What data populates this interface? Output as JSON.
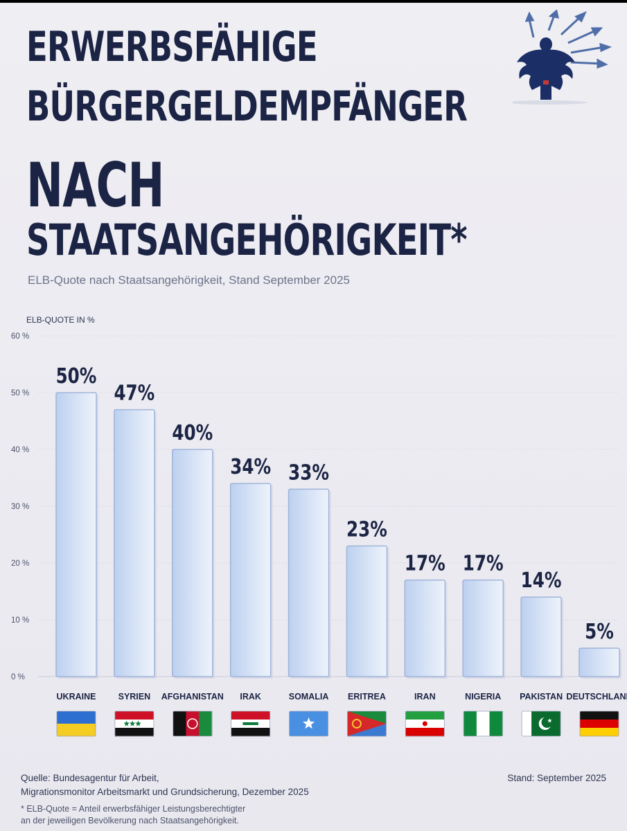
{
  "header": {
    "title_line1": "ERWERBSFÄHIGE",
    "title_line2": "BÜRGERGELDEMPFÄNGER",
    "title_line3": "NACH",
    "title_line4": "STAATSANGEHÖRIGKEIT*",
    "subtitle": "ELB-Quote nach Staatsangehörigkeit, Stand September 2025"
  },
  "logo": {
    "icon": "federal-eagle-icon",
    "color": "#1b2f66",
    "arrow_color": "#4f6ea8"
  },
  "chart_data": {
    "type": "bar",
    "ylabel": "ELB-QUOTE IN %",
    "ylim": [
      0,
      60
    ],
    "yticks": [
      0,
      10,
      20,
      30,
      40,
      50,
      60
    ],
    "ytick_labels": [
      "0 %",
      "10 %",
      "20 %",
      "30 %",
      "40 %",
      "50 %",
      "60 %"
    ],
    "categories": [
      "UKRAINE",
      "SYRIEN",
      "AFGHANISTAN",
      "IRAK",
      "SOMALIA",
      "ERITREA",
      "IRAN",
      "NIGERIA",
      "PAKISTAN",
      "DEUTSCHLAND"
    ],
    "values": [
      50,
      47,
      40,
      34,
      33,
      23,
      17,
      17,
      14,
      5
    ],
    "value_labels": [
      "50%",
      "47%",
      "40%",
      "34%",
      "33%",
      "23%",
      "17%",
      "17%",
      "14%",
      "5%"
    ],
    "flags": [
      "ukraine-flag-icon",
      "syria-flag-icon",
      "afghanistan-flag-icon",
      "iraq-flag-icon",
      "somalia-flag-icon",
      "eritrea-flag-icon",
      "iran-flag-icon",
      "nigeria-flag-icon",
      "pakistan-flag-icon",
      "germany-flag-icon"
    ],
    "grid": true,
    "bar_color": "#d3e0f5"
  },
  "footer": {
    "source_line1": "Quelle: Bundesagentur für Arbeit,",
    "source_line2": "Migrationsmonitor Arbeitsmarkt und Grundsicherung, Dezember 2025",
    "stand": "Stand: September 2025",
    "footnote_line1": "* ELB-Quote = Anteil erwerbsfähiger Leistungsberechtigter",
    "footnote_line2": "an der jeweiligen Bevölkerung nach Staatsangehörigkeit."
  }
}
